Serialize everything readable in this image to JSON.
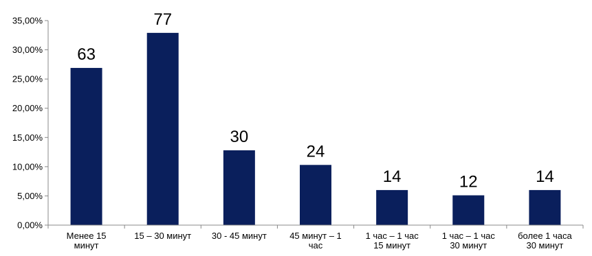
{
  "chart_data": {
    "type": "bar",
    "title": "",
    "xlabel": "",
    "ylabel": "",
    "ylim": [
      0,
      0.35
    ],
    "y_ticks": [
      "0,00%",
      "5,00%",
      "10,00%",
      "15,00%",
      "20,00%",
      "25,00%",
      "30,00%",
      "35,00%"
    ],
    "grid": false,
    "legend": "none",
    "bar_color": "#0a1f5c",
    "categories": [
      [
        "Менее 15",
        "минут"
      ],
      [
        "15 – 30 минут"
      ],
      [
        "30 - 45 минут"
      ],
      [
        "45 минут – 1",
        "час"
      ],
      [
        "1 час – 1 час",
        "15 минут"
      ],
      [
        "1 час – 1 час",
        "30 минут"
      ],
      [
        "более 1 часа",
        "30 минут"
      ]
    ],
    "values": [
      0.269,
      0.329,
      0.128,
      0.103,
      0.06,
      0.051,
      0.06
    ],
    "data_labels": [
      "63",
      "77",
      "30",
      "24",
      "14",
      "12",
      "14"
    ]
  }
}
